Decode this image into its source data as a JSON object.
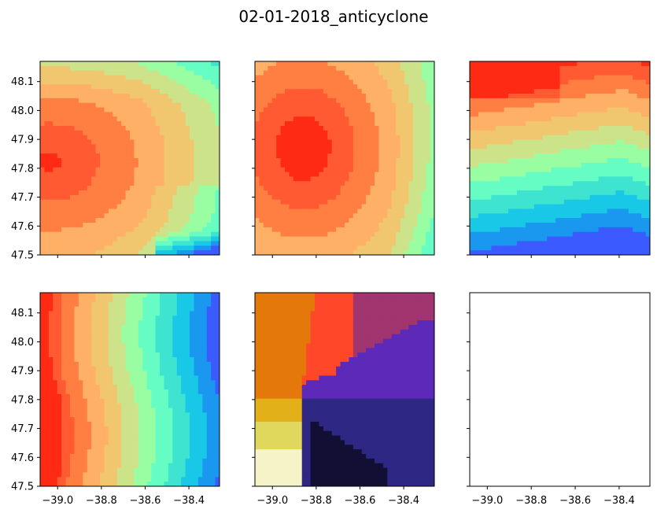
{
  "figure": {
    "title": "02-01-2018_anticyclone"
  },
  "chart_data": {
    "type": "contour",
    "title": "02-01-2018_anticyclone",
    "layout": "2x3 grid of filled contour panels, shared axes",
    "x_range": [
      -39.08,
      -38.26
    ],
    "y_range": [
      47.5,
      48.17
    ],
    "x_ticks": [
      -39.0,
      -38.8,
      -38.6,
      -38.4
    ],
    "x_tick_labels": [
      "−39.0",
      "−38.8",
      "−38.6",
      "−38.4"
    ],
    "y_ticks": [
      47.5,
      47.6,
      47.7,
      47.8,
      47.9,
      48.0,
      48.1
    ],
    "y_tick_labels": [
      "47.5",
      "47.6",
      "47.7",
      "47.8",
      "47.9",
      "48.0",
      "48.1"
    ],
    "colormaps": {
      "rainbow": [
        "#3b5bff",
        "#1a98ef",
        "#19c8e6",
        "#3ee4d0",
        "#66fdc4",
        "#99fda2",
        "#cde38a",
        "#f0c66e",
        "#ffb067",
        "#ff7e41",
        "#ff5a32",
        "#ff2a14"
      ],
      "inferno": [
        "#120f35",
        "#2e2784",
        "#5c29b8",
        "#a1356f",
        "#ff4729",
        "#e5780b",
        "#e2b11a",
        "#e0d85c",
        "#f5f3c8"
      ]
    },
    "panels": [
      {
        "id": "panel-1",
        "colormap": "rainbow",
        "feature": "high centered near (-39.0, 47.8)",
        "empty": false
      },
      {
        "id": "panel-2",
        "colormap": "rainbow",
        "feature": "concentric maximum centered near (-38.86, 47.82)",
        "empty": false
      },
      {
        "id": "panel-3",
        "colormap": "rainbow",
        "feature": "values increase from south to north",
        "empty": false
      },
      {
        "id": "panel-4",
        "colormap": "rainbow",
        "feature": "values decrease from west to east",
        "empty": false
      },
      {
        "id": "panel-5",
        "colormap": "inferno",
        "feature": "front near -38.85 longitude",
        "empty": false
      },
      {
        "id": "panel-6",
        "colormap": "",
        "feature": "",
        "empty": true
      }
    ]
  }
}
